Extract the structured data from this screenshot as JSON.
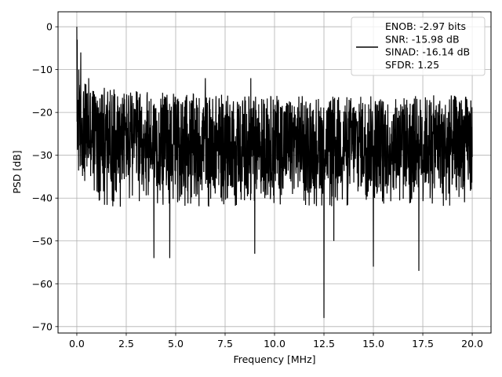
{
  "chart_data": {
    "type": "line",
    "title": "",
    "xlabel": "Frequency [MHz]",
    "ylabel": "PSD [dB]",
    "xlim": [
      -0.95,
      20.95
    ],
    "ylim": [
      -71.5,
      3.5
    ],
    "xticks": [
      0.0,
      2.5,
      5.0,
      7.5,
      10.0,
      12.5,
      15.0,
      17.5,
      20.0
    ],
    "xtick_labels": [
      "0.0",
      "2.5",
      "5.0",
      "7.5",
      "10.0",
      "12.5",
      "15.0",
      "17.5",
      "20.0"
    ],
    "yticks": [
      0,
      -10,
      -20,
      -30,
      -40,
      -50,
      -60,
      -70
    ],
    "ytick_labels": [
      "0",
      "−10",
      "−20",
      "−30",
      "−40",
      "−50",
      "−60",
      "−70"
    ],
    "grid": true,
    "legend_position": "upper-right",
    "series": [
      {
        "name": "ENOB: -2.97 bits\nSNR: -15.98 dB\nSINAD: -16.14 dB\nSFDR: 1.25",
        "color": "#000000",
        "x_range": [
          0.0,
          20.0
        ],
        "noise_band_db": [
          -38,
          -16
        ],
        "peaks": [
          {
            "x": 0.0,
            "y": 0.0
          },
          {
            "x": 0.02,
            "y": -3
          },
          {
            "x": 0.1,
            "y": -10
          },
          {
            "x": 0.2,
            "y": -6
          },
          {
            "x": 0.6,
            "y": -12
          },
          {
            "x": 6.5,
            "y": -12
          },
          {
            "x": 8.8,
            "y": -12
          }
        ],
        "dips": [
          {
            "x": 0.4,
            "y": -36
          },
          {
            "x": 2.2,
            "y": -42
          },
          {
            "x": 3.9,
            "y": -54
          },
          {
            "x": 4.7,
            "y": -54
          },
          {
            "x": 9.0,
            "y": -53
          },
          {
            "x": 12.5,
            "y": -68
          },
          {
            "x": 13.0,
            "y": -50
          },
          {
            "x": 15.0,
            "y": -56
          },
          {
            "x": 17.3,
            "y": -57
          }
        ]
      }
    ]
  }
}
